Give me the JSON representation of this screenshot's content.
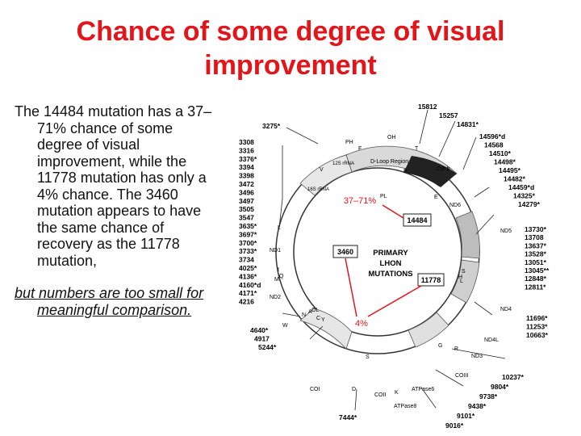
{
  "slide": {
    "title": "Chance of some degree of visual improvement",
    "paragraph1": "The 14484 mutation has a 37–71% chance of some degree of visual improvement, while the 11778 mutation has only a 4% chance. The 3460 mutation appears to have the same chance of recovery as the 11778 mutation,",
    "paragraph2": "but numbers are too small for meaningful comparison."
  },
  "colors": {
    "title": "#e3151a",
    "arrow": "#e3151a"
  },
  "diagram": {
    "center_title": [
      "PRIMARY",
      "LHON",
      "MUTATIONS"
    ],
    "boxes": [
      "14484",
      "3460",
      "11778"
    ],
    "annotations": [
      "37–71%",
      "4%"
    ],
    "dloop": "D-Loop Region",
    "left_list": [
      "3308",
      "3316",
      "3376*",
      "3394",
      "3398",
      "3472",
      "3496",
      "3497",
      "3505",
      "3547",
      "3635*",
      "3697*",
      "3700*",
      "3733*",
      "3734",
      "4025*",
      "4136*",
      "4160*d",
      "4171*",
      "4216"
    ],
    "left_top": "3275*",
    "left_bottom": [
      "4640*",
      "4917",
      "5244*"
    ],
    "top": [
      "15812",
      "15257",
      "14831*"
    ],
    "right_upper": [
      "14596*d",
      "14568",
      "14510*",
      "14498*",
      "14495*",
      "14482*",
      "14459*d",
      "14325*",
      "14279*"
    ],
    "right_mid": [
      "13730*",
      "13708",
      "13637*",
      "13528*",
      "13051*",
      "13045**",
      "12848*",
      "12811*"
    ],
    "right_lower": [
      "11696*",
      "11253*",
      "10663*"
    ],
    "bottom_right": [
      "10237*",
      "9804*",
      "9738*",
      "9438*",
      "9101*",
      "9016*"
    ],
    "bottom_left": "7444*",
    "genes": {
      "cytb": "Cyt b",
      "nd6": "ND6",
      "nd5": "ND5",
      "nd4": "ND4",
      "nd4l": "ND4L",
      "nd3": "ND3",
      "coiii": "COIII",
      "atpase6": "ATPase6",
      "atpase8": "ATPase8",
      "coii": "COII",
      "coi": "COI",
      "nd2": "ND2",
      "nd1": "ND1",
      "rrna12": "12S rRNA",
      "rrna16": "16S rRNA",
      "ph": "PH",
      "pl": "PL",
      "oh": "OH",
      "ol": "OL",
      "t": "T",
      "f": "F",
      "v": "V",
      "l": "L",
      "i": "I",
      "q": "Q",
      "m": "M",
      "w": "W",
      "a": "A",
      "n": "N",
      "c": "C",
      "y": "Y",
      "s": "S",
      "d": "D",
      "k": "K",
      "g": "G",
      "r": "R",
      "h": "H",
      "e": "E",
      "p": "P",
      "l2": "L",
      "s2": "S"
    }
  }
}
